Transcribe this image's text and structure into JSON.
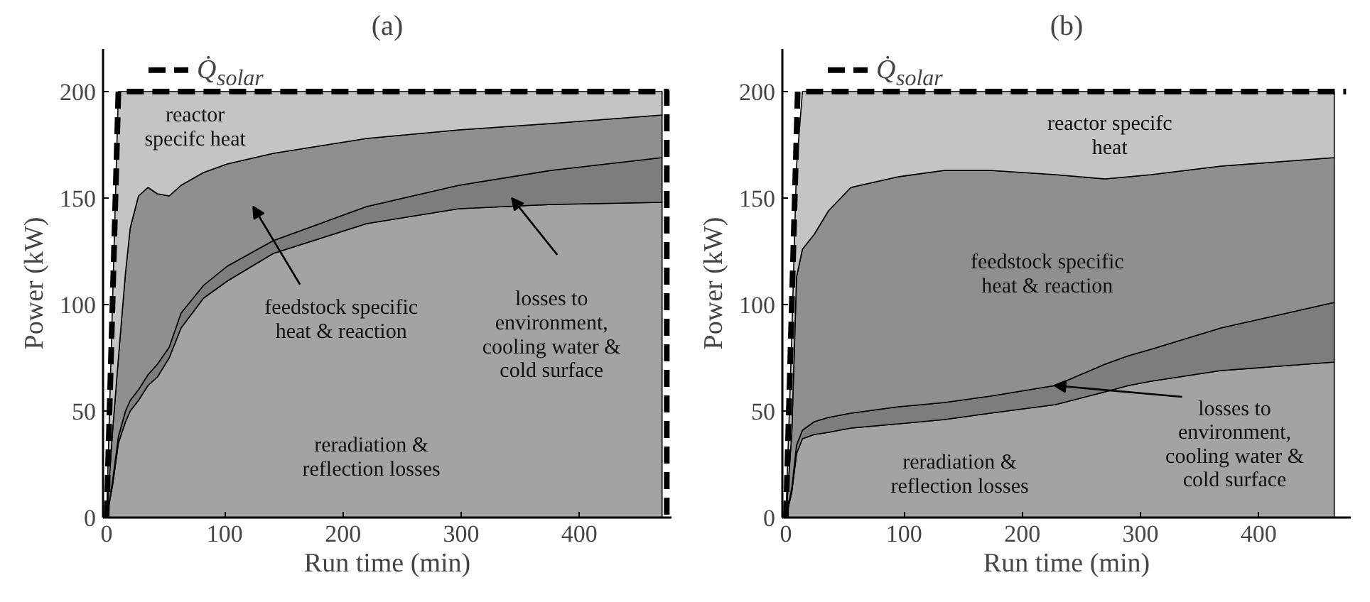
{
  "chart_data": [
    {
      "type": "area",
      "title": "(a)",
      "xlabel": "Run time (min)",
      "ylabel": "Power (kW)",
      "stacked": true,
      "legend": "top left",
      "grid": false,
      "xlim": [
        -3,
        478
      ],
      "ylim": [
        0,
        220
      ],
      "xticks": [
        0,
        100,
        200,
        300,
        400
      ],
      "yticks": [
        0,
        50,
        100,
        150,
        200
      ],
      "x": [
        0,
        5,
        10,
        16,
        20,
        27,
        35,
        43,
        53,
        63,
        82,
        102,
        141,
        220,
        298,
        376,
        470
      ],
      "series": [
        {
          "color": "#a3a3a3",
          "values": [
            0,
            15,
            35,
            45,
            50,
            55,
            62,
            66,
            75,
            89,
            103,
            111,
            124,
            138,
            145,
            147,
            148
          ]
        },
        {
          "color": "#7d7d7d",
          "values": [
            0,
            2,
            3,
            5,
            5,
            5,
            5,
            6,
            5,
            7,
            6,
            7,
            6,
            8,
            11,
            16,
            21
          ]
        },
        {
          "color": "#8f8f8f",
          "values": [
            0,
            23,
            37,
            65,
            81,
            91,
            88,
            80,
            71,
            60,
            53,
            48,
            41,
            32,
            26,
            22,
            20
          ]
        },
        {
          "color": "#c4c4c4",
          "values": [
            0,
            60,
            125,
            85,
            64,
            49,
            45,
            48,
            49,
            44,
            38,
            34,
            29,
            22,
            18,
            15,
            11
          ]
        },
        {
          "name": "Q̇$_{solar}$",
          "type": "line",
          "line_style": "dashed",
          "color": "#000000",
          "x": [
            0,
            10,
            474,
            474
          ],
          "values": [
            0,
            200,
            200,
            0
          ]
        }
      ],
      "annotations": [
        "reactor\nspecifc heat",
        "feedstock specific\nheat & reaction",
        "losses to\nenvironment,\ncooling water &\ncold surface",
        "reradiation &\nreflection losses"
      ]
    },
    {
      "type": "area",
      "title": "(b)",
      "xlabel": "Run time (min)",
      "ylabel": "Power (kW)",
      "stacked": true,
      "legend": "top left",
      "grid": false,
      "xlim": [
        -3,
        478
      ],
      "ylim": [
        0,
        220
      ],
      "xticks": [
        0,
        100,
        200,
        300,
        400
      ],
      "yticks": [
        0,
        50,
        100,
        150,
        200
      ],
      "x": [
        0,
        5,
        9,
        14,
        24,
        36,
        55,
        95,
        134,
        173,
        228,
        270,
        290,
        309,
        368,
        464
      ],
      "series": [
        {
          "color": "#a3a3a3",
          "values": [
            0,
            12,
            30,
            37,
            39,
            40,
            42,
            44,
            46,
            49,
            53,
            59,
            62,
            64,
            69,
            73
          ]
        },
        {
          "color": "#7d7d7d",
          "values": [
            0,
            2,
            4,
            4,
            6,
            7,
            7,
            8,
            8,
            8,
            9,
            13,
            14,
            15,
            20,
            28
          ]
        },
        {
          "color": "#8f8f8f",
          "values": [
            0,
            26,
            79,
            85,
            88,
            97,
            106,
            108,
            109,
            106,
            99,
            87,
            84,
            82,
            76,
            68
          ]
        },
        {
          "color": "#c4c4c4",
          "values": [
            0,
            45,
            52,
            74,
            67,
            56,
            45,
            40,
            37,
            37,
            39,
            41,
            40,
            39,
            35,
            31
          ]
        },
        {
          "name": "Q̇$_{solar}$",
          "type": "line",
          "line_style": "dashed",
          "color": "#000000",
          "x": [
            0,
            10,
            474
          ],
          "values": [
            0,
            200,
            200
          ]
        }
      ],
      "annotations": [
        "reactor specifc\nheat",
        "feedstock specific\nheat & reaction",
        {
          "text": "losses to\nenvironment,\ncooling water &\ncold surface",
          "x": 227,
          "y": 62
        },
        "reradiation &\nreflection losses"
      ]
    }
  ]
}
